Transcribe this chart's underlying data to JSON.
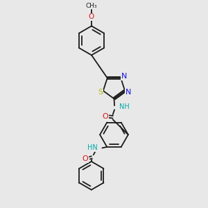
{
  "bg": "#e8e8e8",
  "bc": "#1a1a1a",
  "lw": 1.3,
  "fs": 7.0,
  "col_N": "#1414dd",
  "col_O": "#dd1414",
  "col_S": "#b8b800",
  "col_C": "#1a1a1a",
  "col_NH": "#00aaaa",
  "xlim": [
    0,
    10
  ],
  "ylim": [
    0,
    10
  ]
}
